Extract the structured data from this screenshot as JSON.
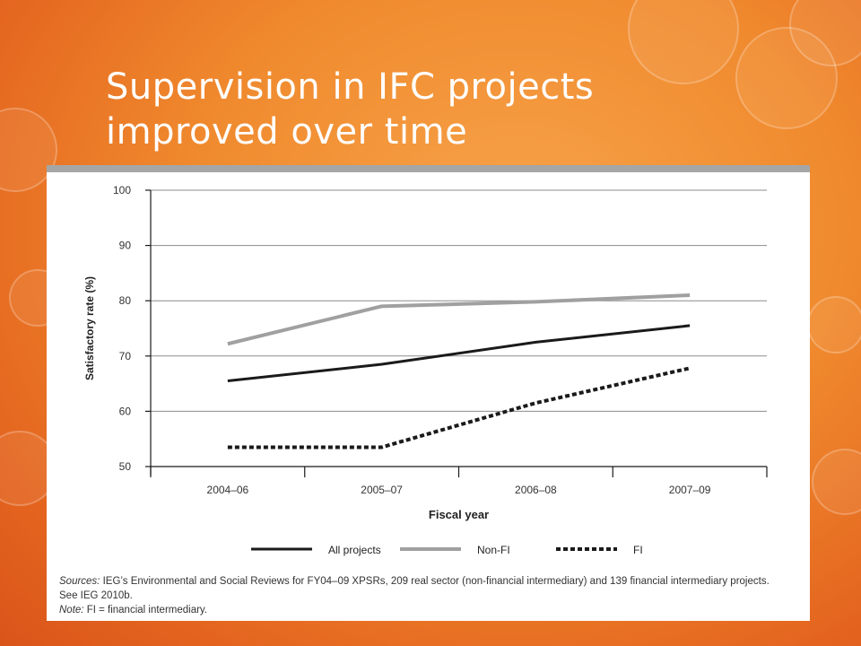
{
  "slide": {
    "title_line1": "Supervision in IFC projects",
    "title_line2": "improved over time"
  },
  "chart_data": {
    "type": "line",
    "title": "",
    "xlabel": "Fiscal year",
    "ylabel": "Satisfactory rate (%)",
    "ylim": [
      50,
      100
    ],
    "yticks": [
      50,
      60,
      70,
      80,
      90,
      100
    ],
    "categories": [
      "2004–06",
      "2005–07",
      "2006–08",
      "2007–09"
    ],
    "grid": true,
    "legend_position": "bottom",
    "series": [
      {
        "name": "All projects",
        "values": [
          65.5,
          68.5,
          72.5,
          75.5
        ],
        "color": "#1a1a1a",
        "style": "solid"
      },
      {
        "name": "Non-FI",
        "values": [
          72.2,
          79.0,
          79.8,
          81.0
        ],
        "color": "#a0a0a0",
        "style": "solid"
      },
      {
        "name": "FI",
        "values": [
          53.5,
          53.5,
          61.5,
          67.8
        ],
        "color": "#1a1a1a",
        "style": "dotted"
      }
    ]
  },
  "notes": {
    "sources_label": "Sources:",
    "sources_text": " IEG’s Environmental and Social Reviews for FY04–09 XPSRs, 209 real sector (non-financial intermediary) and 139 financial intermediary projects.",
    "sources_text2": "See IEG 2010b.",
    "note_label": "Note:",
    "note_text": " FI = financial intermediary."
  }
}
